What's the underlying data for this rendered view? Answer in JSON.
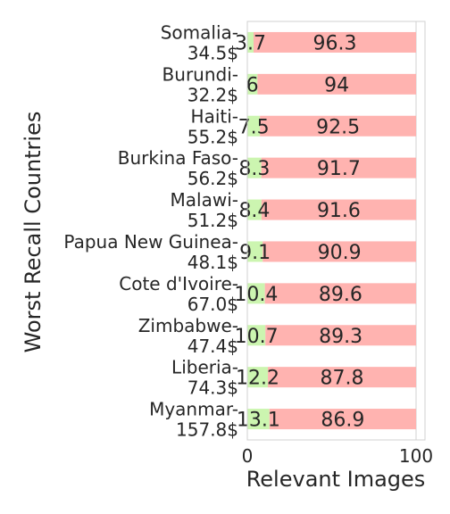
{
  "chart_data": {
    "type": "bar",
    "orientation": "horizontal",
    "stacked": true,
    "xlabel": "Relevant Images",
    "ylabel": "Worst Recall Countries",
    "xlim": [
      0,
      100
    ],
    "x_ticks": [
      "0",
      "100"
    ],
    "grid": true,
    "categories": [
      [
        "Somalia-",
        "34.5$"
      ],
      [
        "Burundi-",
        "32.2$"
      ],
      [
        "Haiti-",
        "55.2$"
      ],
      [
        "Burkina Faso-",
        "56.2$"
      ],
      [
        "Malawi-",
        "51.2$"
      ],
      [
        "Papua New Guinea-",
        "48.1$"
      ],
      [
        "Cote d'Ivoire-",
        "67.0$"
      ],
      [
        "Zimbabwe-",
        "47.4$"
      ],
      [
        "Liberia-",
        "74.3$"
      ],
      [
        "Myanmar-",
        "157.8$"
      ]
    ],
    "series": [
      {
        "color": "#ccf5b0",
        "values": [
          3.7,
          6,
          7.5,
          8.3,
          8.4,
          9.1,
          10.4,
          10.7,
          12.2,
          13.1
        ],
        "labels": [
          "3.7",
          "6",
          "7.5",
          "8.3",
          "8.4",
          "9.1",
          "10.4",
          "10.7",
          "12.2",
          "13.1"
        ]
      },
      {
        "color": "#ffb3b0",
        "values": [
          96.3,
          94,
          92.5,
          91.7,
          91.6,
          90.9,
          89.6,
          89.3,
          87.8,
          86.9
        ],
        "labels": [
          "96.3",
          "94",
          "92.5",
          "91.7",
          "91.6",
          "90.9",
          "89.6",
          "89.3",
          "87.8",
          "86.9"
        ]
      }
    ]
  }
}
